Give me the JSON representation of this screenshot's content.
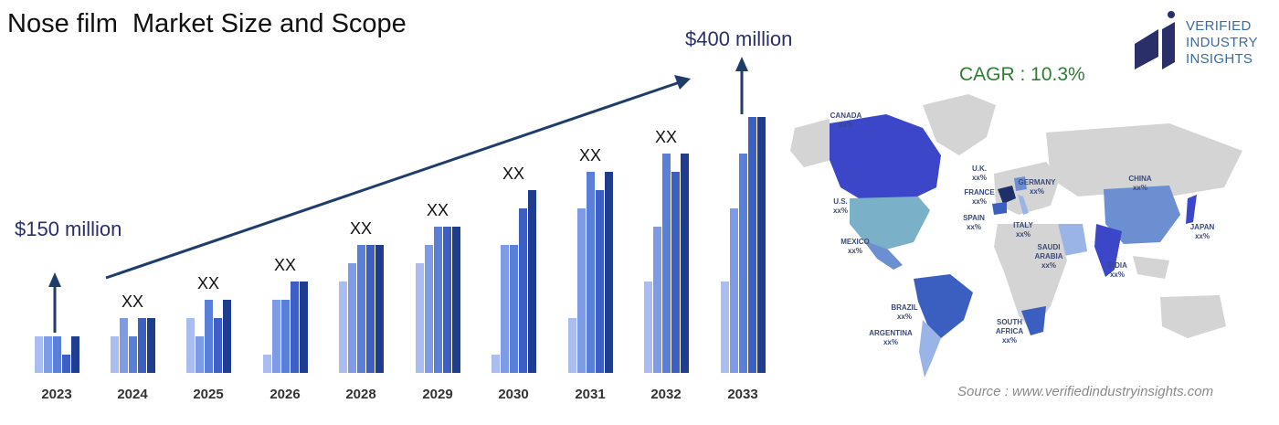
{
  "header": {
    "title": "Nose film  Market Size and Scope"
  },
  "labels": {
    "start_value": "$150 million",
    "end_value": "$400 million",
    "cagr": "CAGR : 10.3%",
    "source": "Source : www.verifiedindustryinsights.com"
  },
  "logo": {
    "line1": "VERIFIED",
    "line2": "INDUSTRY",
    "line3": "INSIGHTS"
  },
  "chart_data": {
    "type": "bar",
    "categories": [
      "2023",
      "2024",
      "2025",
      "2026",
      "2028",
      "2029",
      "2030",
      "2031",
      "2032",
      "2033"
    ],
    "series": [
      {
        "values": [
          2,
          2,
          3,
          1,
          5,
          6,
          1,
          3,
          5,
          5
        ]
      },
      {
        "values": [
          2,
          3,
          2,
          4,
          6,
          7,
          7,
          9,
          8,
          9
        ]
      },
      {
        "values": [
          2,
          2,
          4,
          4,
          7,
          8,
          7,
          11,
          12,
          12
        ]
      },
      {
        "values": [
          1,
          3,
          3,
          5,
          7,
          8,
          9,
          10,
          11,
          14
        ]
      },
      {
        "values": [
          2,
          3,
          4,
          5,
          7,
          8,
          10,
          11,
          12,
          14
        ]
      }
    ],
    "annotations": [
      "",
      "XX",
      "XX",
      "XX",
      "XX",
      "XX",
      "XX",
      "XX",
      "XX",
      ""
    ],
    "colors": [
      "#a9bdf0",
      "#7e9ce6",
      "#5a7fd9",
      "#3d5fc4",
      "#1f3d8f"
    ]
  },
  "map": {
    "labels": [
      {
        "name": "CANADA",
        "value": "xx%"
      },
      {
        "name": "U.S.",
        "value": "xx%"
      },
      {
        "name": "MEXICO",
        "value": "xx%"
      },
      {
        "name": "BRAZIL",
        "value": "xx%"
      },
      {
        "name": "ARGENTINA",
        "value": "xx%"
      },
      {
        "name": "U.K.",
        "value": "xx%"
      },
      {
        "name": "FRANCE",
        "value": "xx%"
      },
      {
        "name": "SPAIN",
        "value": "xx%"
      },
      {
        "name": "GERMANY",
        "value": "xx%"
      },
      {
        "name": "ITALY",
        "value": "xx%"
      },
      {
        "name": "SAUDI",
        "value": "ARABIA"
      },
      {
        "name": "SOUTH",
        "value": "AFRICA"
      },
      {
        "name": "CHINA",
        "value": "xx%"
      },
      {
        "name": "INDIA",
        "value": "xx%"
      },
      {
        "name": "JAPAN",
        "value": "xx%"
      }
    ],
    "extra": {
      "saudi_value": "xx%",
      "safrica_value": "xx%"
    },
    "colors": {
      "land": "#d4d4d4",
      "north_america": "#3b47c8",
      "usa": "#7ab1c8",
      "south_america": "#3b5fc0"
    }
  }
}
